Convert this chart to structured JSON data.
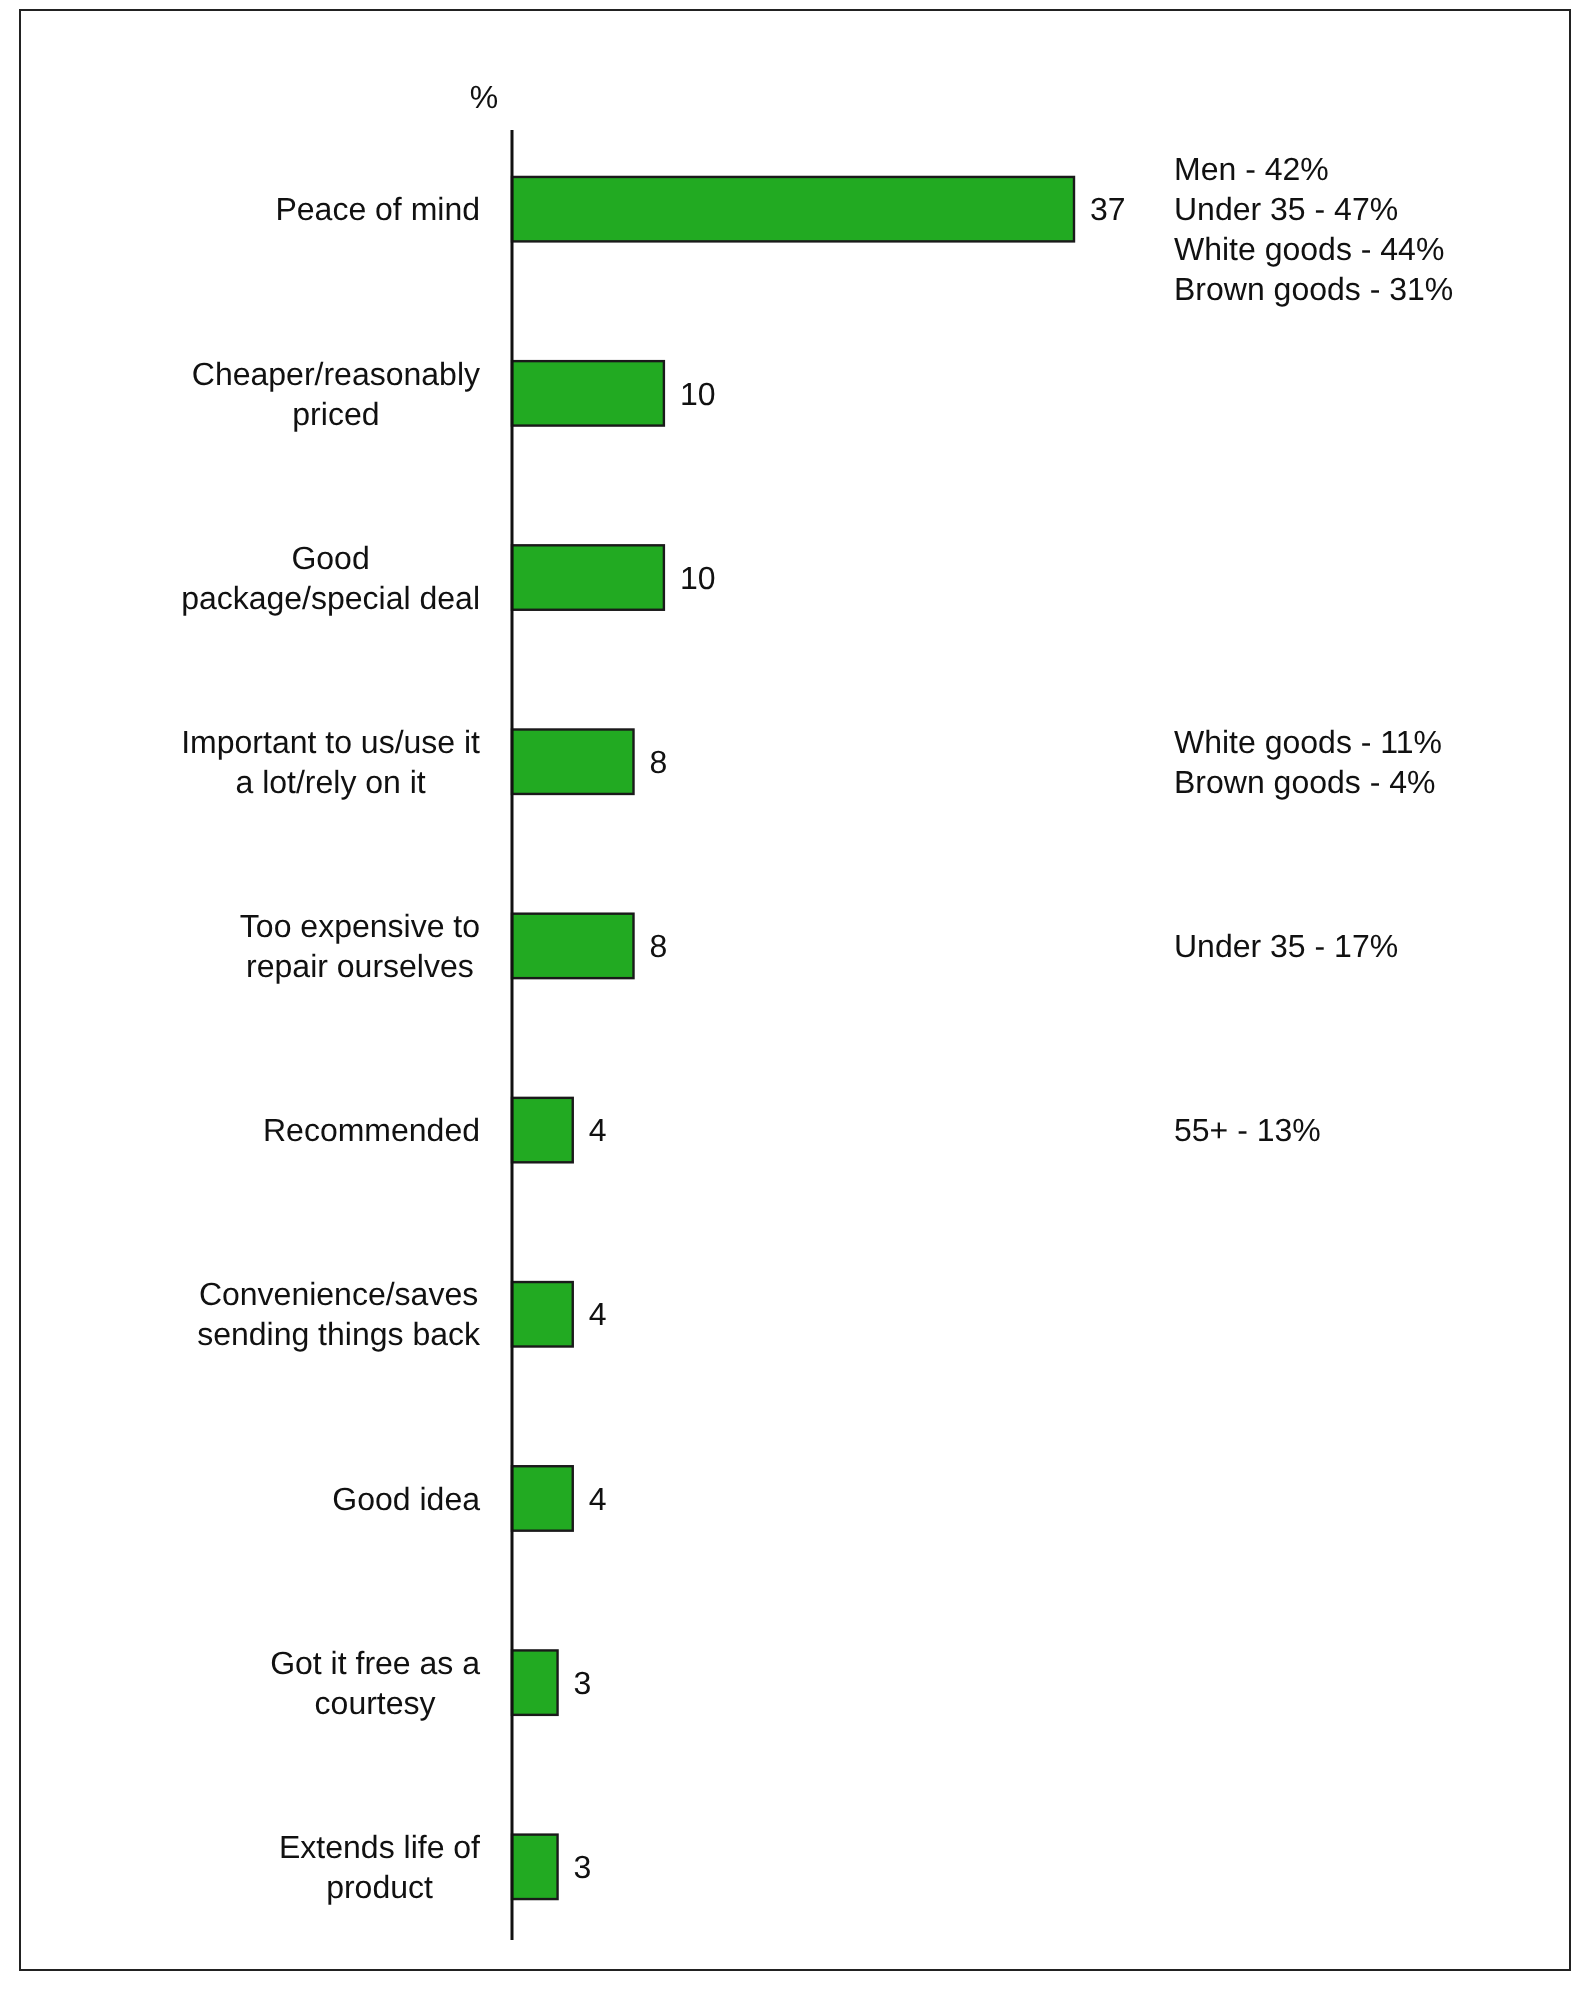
{
  "chart_data": {
    "type": "bar",
    "orientation": "horizontal",
    "xlabel": "%",
    "categories": [
      "Peace of mind",
      "Cheaper/reasonably priced",
      "Good package/special deal",
      "Important to us/use it a lot/rely on it",
      "Too expensive to repair ourselves",
      "Recommended",
      "Convenience/saves sending things back",
      "Good idea",
      "Got it free as a courtesy",
      "Extends life of product"
    ],
    "values": [
      37,
      10,
      10,
      8,
      8,
      4,
      4,
      4,
      3,
      3
    ],
    "color": "#22aa22",
    "data_labels": true,
    "annotations": [
      "Men - 42%",
      "Under 35 - 47%",
      "White goods - 44%",
      "Brown goods - 31%",
      "White goods - 11%",
      "Brown goods - 4%",
      "Under 35 - 17%",
      "55+ - 13%"
    ]
  }
}
